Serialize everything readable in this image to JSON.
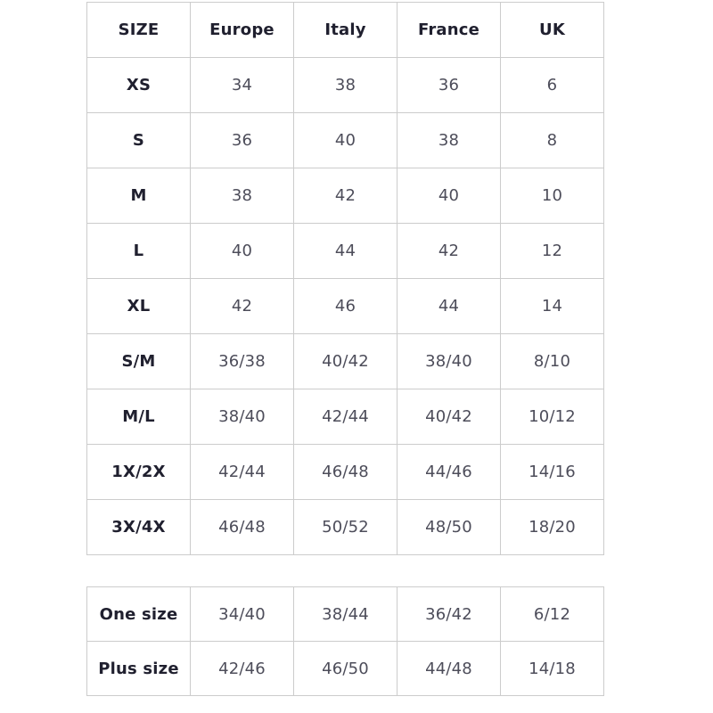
{
  "colors": {
    "border": "#cccccc",
    "header_text": "#20202f",
    "data_text": "#4d4d5a"
  },
  "size_table": {
    "headers": [
      "SIZE",
      "Europe",
      "Italy",
      "France",
      "UK"
    ],
    "rows": [
      {
        "size": "XS",
        "values": [
          "34",
          "38",
          "36",
          "6"
        ]
      },
      {
        "size": "S",
        "values": [
          "36",
          "40",
          "38",
          "8"
        ]
      },
      {
        "size": "M",
        "values": [
          "38",
          "42",
          "40",
          "10"
        ]
      },
      {
        "size": "L",
        "values": [
          "40",
          "44",
          "42",
          "12"
        ]
      },
      {
        "size": "XL",
        "values": [
          "42",
          "46",
          "44",
          "14"
        ]
      },
      {
        "size": "S/M",
        "values": [
          "36/38",
          "40/42",
          "38/40",
          "8/10"
        ]
      },
      {
        "size": "M/L",
        "values": [
          "38/40",
          "42/44",
          "40/42",
          "10/12"
        ]
      },
      {
        "size": "1X/2X",
        "values": [
          "42/44",
          "46/48",
          "44/46",
          "14/16"
        ]
      },
      {
        "size": "3X/4X",
        "values": [
          "46/48",
          "50/52",
          "48/50",
          "18/20"
        ]
      }
    ]
  },
  "special_table": {
    "rows": [
      {
        "size": "One size",
        "values": [
          "34/40",
          "38/44",
          "36/42",
          "6/12"
        ]
      },
      {
        "size": "Plus size",
        "values": [
          "42/46",
          "46/50",
          "44/48",
          "14/18"
        ]
      }
    ]
  }
}
